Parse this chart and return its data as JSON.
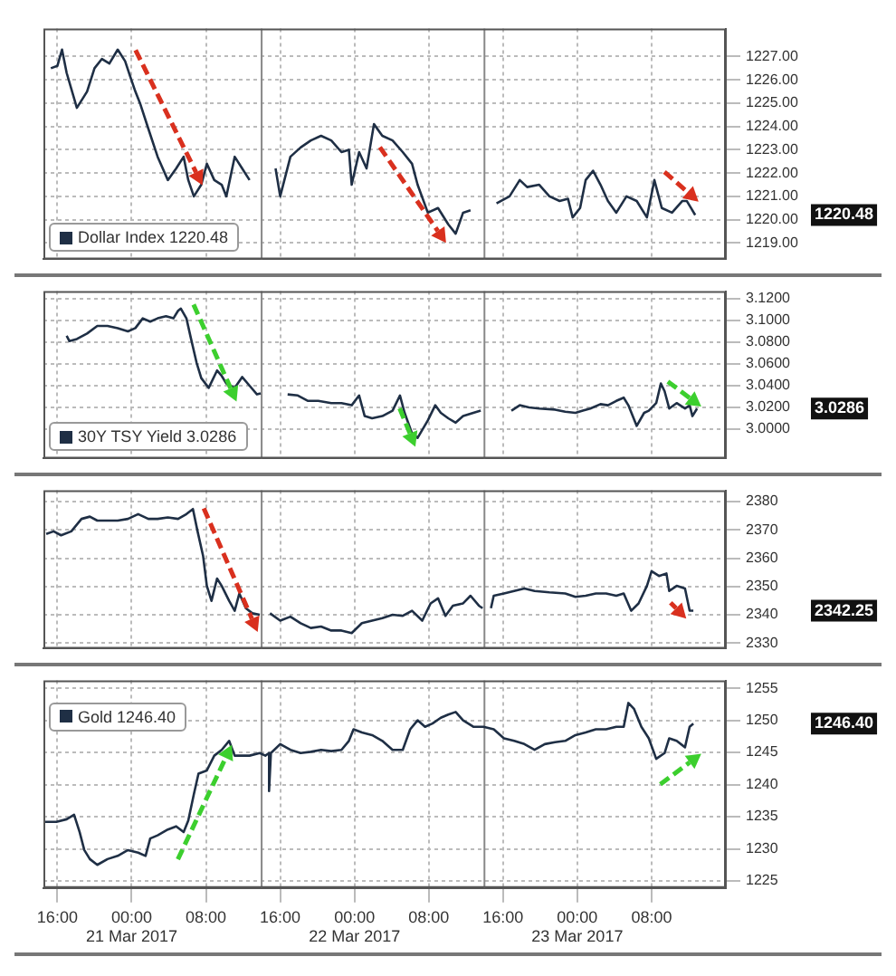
{
  "chart_data": [
    {
      "type": "line",
      "xlim": [
        "2017-03-20T14:30",
        "2017-03-23T16:00"
      ],
      "xticks": [
        {
          "value": "2017-03-20T16:00",
          "label": null
        },
        {
          "value": "2017-03-21T00:00",
          "label": null
        },
        {
          "value": "2017-03-21T08:00",
          "label": null
        },
        {
          "value": "2017-03-21T16:00",
          "label": null
        },
        {
          "value": "2017-03-22T00:00",
          "label": null
        },
        {
          "value": "2017-03-22T08:00",
          "label": null
        },
        {
          "value": "2017-03-22T16:00",
          "label": null
        },
        {
          "value": "2017-03-23T00:00",
          "label": null
        },
        {
          "value": "2017-03-23T08:00",
          "label": null
        }
      ],
      "ylim": [
        1218.3,
        1228.2
      ],
      "yticks": [
        {
          "value": 1219,
          "label": "1219.00"
        },
        {
          "value": 1220,
          "label": "1220.00"
        },
        {
          "value": 1221,
          "label": "1221.00"
        },
        {
          "value": 1222,
          "label": "1222.00"
        },
        {
          "value": 1223,
          "label": "1223.00"
        },
        {
          "value": 1224,
          "label": "1224.00"
        },
        {
          "value": 1225,
          "label": "1225.00"
        },
        {
          "value": 1226,
          "label": "1226.00"
        },
        {
          "value": 1227,
          "label": "1227.00"
        }
      ],
      "tick_labels": "y",
      "grid": true,
      "legend": "bottom left",
      "ref_lines": [
        {
          "axis": "x",
          "value": "2017-03-21T14:00",
          "color": "#888888"
        },
        {
          "axis": "x",
          "value": "2017-03-22T14:00",
          "color": "#888888"
        }
      ],
      "annotations": [
        "1220.48"
      ],
      "series": [
        {
          "name": "Dollar Index 1220.48",
          "color": "#1f2f45",
          "x": [
            "2017-03-20T15:18",
            "2017-03-20T16:00",
            "2017-03-20T16:30",
            "2017-03-20T17:00",
            "2017-03-20T18:06",
            "2017-03-20T19:12",
            "2017-03-20T20:00",
            "2017-03-20T20:48",
            "2017-03-20T21:36",
            "2017-03-20T22:30",
            "2017-03-20T23:18",
            "2017-03-20T23:48",
            "2017-03-21T00:24",
            "2017-03-21T00:54",
            "2017-03-21T01:48",
            "2017-03-21T02:48",
            "2017-03-21T03:54",
            "2017-03-21T04:48",
            "2017-03-21T05:36",
            "2017-03-21T06:06",
            "2017-03-21T06:42",
            "2017-03-21T07:30",
            "2017-03-21T08:06",
            "2017-03-21T08:54",
            "2017-03-21T09:42",
            "2017-03-21T10:12",
            "2017-03-21T11:06",
            "2017-03-21T11:54",
            "2017-03-21T12:42",
            "2017-03-21T14:00",
            "2017-03-21T15:30",
            "2017-03-21T16:00",
            "2017-03-21T17:06",
            "2017-03-21T18:12",
            "2017-03-21T19:18",
            "2017-03-21T20:24",
            "2017-03-21T21:30",
            "2017-03-21T22:36",
            "2017-03-21T23:24",
            "2017-03-21T23:42",
            "2017-03-22T00:30",
            "2017-03-22T01:18",
            "2017-03-22T02:06",
            "2017-03-22T03:00",
            "2017-03-22T04:06",
            "2017-03-22T05:12",
            "2017-03-22T06:12",
            "2017-03-22T06:48",
            "2017-03-22T07:54",
            "2017-03-22T09:00",
            "2017-03-22T10:06",
            "2017-03-22T10:54",
            "2017-03-22T11:42",
            "2017-03-22T12:30",
            "2017-03-22T14:00",
            "2017-03-22T15:18",
            "2017-03-22T16:42",
            "2017-03-22T17:48",
            "2017-03-22T18:36",
            "2017-03-22T19:54",
            "2017-03-22T21:00",
            "2017-03-22T22:06",
            "2017-03-22T23:00",
            "2017-03-22T23:30",
            "2017-03-23T00:18",
            "2017-03-23T00:54",
            "2017-03-23T01:42",
            "2017-03-23T02:30",
            "2017-03-23T03:18",
            "2017-03-23T04:12",
            "2017-03-23T05:18",
            "2017-03-23T06:24",
            "2017-03-23T07:30",
            "2017-03-23T08:18",
            "2017-03-23T09:06",
            "2017-03-23T10:12",
            "2017-03-23T11:18",
            "2017-03-23T11:48",
            "2017-03-23T12:42"
          ],
          "values": [
            1226.5,
            1226.6,
            1227.3,
            1226.3,
            1224.8,
            1225.5,
            1226.5,
            1226.9,
            1226.7,
            1227.3,
            1226.8,
            1226.2,
            1225.5,
            1225.0,
            1223.9,
            1222.7,
            1221.7,
            1222.2,
            1222.7,
            1221.7,
            1221.0,
            1221.5,
            1222.4,
            1221.7,
            1221.5,
            1221.0,
            1222.7,
            1222.2,
            1221.7,
            null,
            1222.2,
            1221.0,
            1222.7,
            1223.1,
            1223.4,
            1223.6,
            1223.4,
            1222.9,
            1223.0,
            1221.5,
            1222.9,
            1222.2,
            1224.1,
            1223.6,
            1223.4,
            1222.9,
            1222.4,
            1221.5,
            1220.3,
            1220.5,
            1219.8,
            1219.4,
            1220.3,
            1220.4,
            null,
            1220.7,
            1221.0,
            1221.7,
            1221.4,
            1221.5,
            1221.0,
            1220.8,
            1220.9,
            1220.1,
            1220.5,
            1221.7,
            1222.1,
            1221.5,
            1220.8,
            1220.3,
            1221.0,
            1220.8,
            1220.1,
            1221.7,
            1220.5,
            1220.3,
            1220.8,
            1220.8,
            1220.2
          ]
        }
      ]
    },
    {
      "type": "line",
      "xlim": [
        "2017-03-20T14:30",
        "2017-03-23T16:00"
      ],
      "xticks": [
        {
          "value": "2017-03-20T16:00",
          "label": null
        },
        {
          "value": "2017-03-21T00:00",
          "label": null
        },
        {
          "value": "2017-03-21T08:00",
          "label": null
        },
        {
          "value": "2017-03-21T16:00",
          "label": null
        },
        {
          "value": "2017-03-22T00:00",
          "label": null
        },
        {
          "value": "2017-03-22T08:00",
          "label": null
        },
        {
          "value": "2017-03-22T16:00",
          "label": null
        },
        {
          "value": "2017-03-23T00:00",
          "label": null
        },
        {
          "value": "2017-03-23T08:00",
          "label": null
        }
      ],
      "ylim": [
        2.973,
        3.127
      ],
      "yticks": [
        {
          "value": 3.0,
          "label": "3.0000"
        },
        {
          "value": 3.02,
          "label": "3.0200"
        },
        {
          "value": 3.04,
          "label": "3.0400"
        },
        {
          "value": 3.06,
          "label": "3.0600"
        },
        {
          "value": 3.08,
          "label": "3.0800"
        },
        {
          "value": 3.1,
          "label": "3.1000"
        },
        {
          "value": 3.12,
          "label": "3.1200"
        }
      ],
      "tick_labels": "y",
      "grid": true,
      "legend": "bottom left",
      "ref_lines": [
        {
          "axis": "x",
          "value": "2017-03-21T14:00",
          "color": "#888888"
        },
        {
          "axis": "x",
          "value": "2017-03-22T14:00",
          "color": "#888888"
        }
      ],
      "annotations": [
        "3.0286"
      ],
      "series": [
        {
          "name": "30Y TSY Yield 3.0286",
          "color": "#1f2f45",
          "x": [
            "2017-03-20T17:00",
            "2017-03-20T17:18",
            "2017-03-20T18:06",
            "2017-03-20T19:12",
            "2017-03-20T20:18",
            "2017-03-20T21:24",
            "2017-03-20T22:30",
            "2017-03-20T23:36",
            "2017-03-21T00:24",
            "2017-03-21T01:12",
            "2017-03-21T02:00",
            "2017-03-21T02:48",
            "2017-03-21T03:42",
            "2017-03-21T04:30",
            "2017-03-21T05:00",
            "2017-03-21T05:18",
            "2017-03-21T05:54",
            "2017-03-21T06:24",
            "2017-03-21T07:00",
            "2017-03-21T07:30",
            "2017-03-21T08:18",
            "2017-03-21T09:12",
            "2017-03-21T09:42",
            "2017-03-21T10:12",
            "2017-03-21T11:06",
            "2017-03-21T11:54",
            "2017-03-21T12:42",
            "2017-03-21T13:30",
            "2017-03-21T13:54",
            "2017-03-21T14:00",
            "2017-03-21T16:48",
            "2017-03-21T17:54",
            "2017-03-21T19:00",
            "2017-03-21T20:06",
            "2017-03-21T21:30",
            "2017-03-21T22:36",
            "2017-03-21T23:42",
            "2017-03-22T00:30",
            "2017-03-22T01:06",
            "2017-03-22T01:54",
            "2017-03-22T03:00",
            "2017-03-22T04:06",
            "2017-03-22T04:54",
            "2017-03-22T05:24",
            "2017-03-22T06:12",
            "2017-03-22T06:48",
            "2017-03-22T07:54",
            "2017-03-22T08:42",
            "2017-03-22T09:18",
            "2017-03-22T10:06",
            "2017-03-22T10:54",
            "2017-03-22T11:42",
            "2017-03-22T12:48",
            "2017-03-22T13:36",
            "2017-03-22T14:00",
            "2017-03-22T16:54",
            "2017-03-22T17:48",
            "2017-03-22T18:48",
            "2017-03-22T19:54",
            "2017-03-22T21:36",
            "2017-03-22T22:42",
            "2017-03-22T23:48",
            "2017-03-23T00:36",
            "2017-03-23T01:24",
            "2017-03-23T02:30",
            "2017-03-23T03:18",
            "2017-03-23T04:12",
            "2017-03-23T05:00",
            "2017-03-23T05:30",
            "2017-03-23T06:24",
            "2017-03-23T07:12",
            "2017-03-23T07:42",
            "2017-03-23T08:30",
            "2017-03-23T09:00",
            "2017-03-23T09:24",
            "2017-03-23T09:54",
            "2017-03-23T10:42",
            "2017-03-23T11:36",
            "2017-03-23T12:06",
            "2017-03-23T12:24",
            "2017-03-23T12:54"
          ],
          "values": [
            3.086,
            3.081,
            3.083,
            3.088,
            3.095,
            3.095,
            3.093,
            3.09,
            3.093,
            3.102,
            3.099,
            3.102,
            3.104,
            3.102,
            3.109,
            3.111,
            3.102,
            3.083,
            3.061,
            3.047,
            3.038,
            3.054,
            3.049,
            3.042,
            3.038,
            3.048,
            3.04,
            3.032,
            3.033,
            null,
            3.032,
            3.031,
            3.026,
            3.026,
            3.024,
            3.024,
            3.022,
            3.031,
            3.012,
            3.01,
            3.012,
            3.017,
            3.031,
            3.015,
            2.996,
            2.992,
            3.008,
            3.022,
            3.015,
            3.01,
            3.006,
            3.012,
            3.015,
            3.017,
            null,
            3.017,
            3.022,
            3.02,
            3.019,
            3.018,
            3.016,
            3.015,
            3.017,
            3.019,
            3.023,
            3.022,
            3.026,
            3.029,
            3.022,
            3.003,
            3.015,
            3.017,
            3.024,
            3.042,
            3.035,
            3.019,
            3.024,
            3.019,
            3.022,
            3.012,
            3.019
          ]
        }
      ]
    },
    {
      "type": "line",
      "xlim": [
        "2017-03-20T14:30",
        "2017-03-23T16:00"
      ],
      "xticks": [
        {
          "value": "2017-03-20T16:00",
          "label": null
        },
        {
          "value": "2017-03-21T00:00",
          "label": null
        },
        {
          "value": "2017-03-21T08:00",
          "label": null
        },
        {
          "value": "2017-03-21T16:00",
          "label": null
        },
        {
          "value": "2017-03-22T00:00",
          "label": null
        },
        {
          "value": "2017-03-22T08:00",
          "label": null
        },
        {
          "value": "2017-03-22T16:00",
          "label": null
        },
        {
          "value": "2017-03-23T00:00",
          "label": null
        },
        {
          "value": "2017-03-23T08:00",
          "label": null
        }
      ],
      "ylim": [
        2328,
        2384
      ],
      "yticks": [
        2330,
        2340,
        2350,
        2360,
        2370,
        2380
      ],
      "tick_labels": "y",
      "grid": true,
      "ref_lines": [
        {
          "axis": "x",
          "value": "2017-03-21T14:00",
          "color": "#888888"
        },
        {
          "axis": "x",
          "value": "2017-03-22T14:00",
          "color": "#888888"
        }
      ],
      "annotations": [
        "2342.25"
      ],
      "series": [
        {
          "color": "#1f2f45",
          "x": [
            "2017-03-20T14:48",
            "2017-03-20T15:36",
            "2017-03-20T16:24",
            "2017-03-20T17:30",
            "2017-03-20T18:36",
            "2017-03-20T19:30",
            "2017-03-20T20:18",
            "2017-03-20T21:24",
            "2017-03-20T22:30",
            "2017-03-20T23:36",
            "2017-03-21T00:42",
            "2017-03-21T01:48",
            "2017-03-21T02:48",
            "2017-03-21T03:54",
            "2017-03-21T05:00",
            "2017-03-21T05:54",
            "2017-03-21T06:36",
            "2017-03-21T07:06",
            "2017-03-21T07:42",
            "2017-03-21T08:06",
            "2017-03-21T08:36",
            "2017-03-21T09:12",
            "2017-03-21T09:42",
            "2017-03-21T10:30",
            "2017-03-21T11:06",
            "2017-03-21T11:36",
            "2017-03-21T12:18",
            "2017-03-21T13:00",
            "2017-03-21T13:48",
            "2017-03-21T14:00",
            "2017-03-21T14:54",
            "2017-03-21T16:00",
            "2017-03-21T17:06",
            "2017-03-21T18:12",
            "2017-03-21T19:18",
            "2017-03-21T20:24",
            "2017-03-21T21:30",
            "2017-03-21T22:36",
            "2017-03-21T23:42",
            "2017-03-22T00:48",
            "2017-03-22T01:54",
            "2017-03-22T03:00",
            "2017-03-22T04:06",
            "2017-03-22T05:12",
            "2017-03-22T06:12",
            "2017-03-22T07:18",
            "2017-03-22T08:12",
            "2017-03-22T09:00",
            "2017-03-22T09:48",
            "2017-03-22T10:36",
            "2017-03-22T11:42",
            "2017-03-22T12:30",
            "2017-03-22T13:24",
            "2017-03-22T13:48",
            "2017-03-22T14:00",
            "2017-03-22T14:42",
            "2017-03-22T15:00",
            "2017-03-22T16:06",
            "2017-03-22T17:12",
            "2017-03-22T18:18",
            "2017-03-22T19:24",
            "2017-03-22T21:00",
            "2017-03-22T22:42",
            "2017-03-22T23:48",
            "2017-03-23T00:54",
            "2017-03-23T02:00",
            "2017-03-23T03:06",
            "2017-03-23T04:12",
            "2017-03-23T05:00",
            "2017-03-23T05:48",
            "2017-03-23T06:36",
            "2017-03-23T07:30",
            "2017-03-23T08:00",
            "2017-03-23T08:48",
            "2017-03-23T09:36",
            "2017-03-23T09:54",
            "2017-03-23T10:42",
            "2017-03-23T11:36",
            "2017-03-23T12:06",
            "2017-03-23T12:30"
          ],
          "values": [
            2368.6,
            2369.5,
            2368.1,
            2369.5,
            2373.9,
            2374.7,
            2373.3,
            2373.3,
            2373.3,
            2373.9,
            2375.6,
            2373.9,
            2373.9,
            2374.4,
            2373.9,
            2375.6,
            2377.4,
            2369.5,
            2360.7,
            2350.2,
            2344.9,
            2352.8,
            2350.2,
            2344.9,
            2341.4,
            2347.5,
            2342.3,
            2340.5,
            2340.0,
            null,
            2340.5,
            2337.9,
            2339.3,
            2337.0,
            2335.3,
            2335.8,
            2334.4,
            2334.4,
            2333.5,
            2337.0,
            2337.9,
            2338.8,
            2340.0,
            2339.6,
            2341.4,
            2337.9,
            2344.0,
            2345.8,
            2339.6,
            2343.2,
            2344.0,
            2346.7,
            2343.2,
            2342.3,
            null,
            2342.3,
            2346.7,
            2347.5,
            2348.4,
            2349.3,
            2348.4,
            2347.9,
            2347.5,
            2346.3,
            2346.7,
            2347.5,
            2347.5,
            2346.7,
            2347.5,
            2341.4,
            2344.0,
            2350.2,
            2355.4,
            2353.7,
            2354.6,
            2348.4,
            2350.2,
            2349.3,
            2341.4,
            2341.4
          ]
        }
      ]
    },
    {
      "type": "line",
      "xlim": [
        "2017-03-20T14:30",
        "2017-03-23T16:00"
      ],
      "xticks": [
        {
          "value": "2017-03-20T16:00",
          "label": "16:00"
        },
        {
          "value": "2017-03-21T00:00",
          "label": "00:00\n21 Mar 2017"
        },
        {
          "value": "2017-03-21T08:00",
          "label": "08:00"
        },
        {
          "value": "2017-03-21T16:00",
          "label": "16:00"
        },
        {
          "value": "2017-03-22T00:00",
          "label": "00:00\n22 Mar 2017"
        },
        {
          "value": "2017-03-22T08:00",
          "label": "08:00"
        },
        {
          "value": "2017-03-22T16:00",
          "label": "16:00"
        },
        {
          "value": "2017-03-23T00:00",
          "label": "00:00\n23 Mar 2017"
        },
        {
          "value": "2017-03-23T08:00",
          "label": "08:00"
        }
      ],
      "ylim": [
        1223.9,
        1256.2
      ],
      "yticks": [
        1225,
        1230,
        1235,
        1240,
        1245,
        1250,
        1255
      ],
      "grid": true,
      "legend": "top left",
      "ref_lines": [
        {
          "axis": "x",
          "value": "2017-03-21T14:00",
          "color": "#888888"
        },
        {
          "axis": "x",
          "value": "2017-03-22T14:00",
          "color": "#888888"
        }
      ],
      "annotations": [
        "1246.40"
      ],
      "series": [
        {
          "name": "Gold 1246.40",
          "color": "#1f2f45",
          "x": [
            "2017-03-20T14:30",
            "2017-03-20T15:54",
            "2017-03-20T17:00",
            "2017-03-20T17:48",
            "2017-03-20T18:24",
            "2017-03-20T18:54",
            "2017-03-20T19:30",
            "2017-03-20T20:18",
            "2017-03-20T21:24",
            "2017-03-20T22:30",
            "2017-03-20T23:36",
            "2017-03-21T00:42",
            "2017-03-21T01:30",
            "2017-03-21T02:00",
            "2017-03-21T02:48",
            "2017-03-21T03:54",
            "2017-03-21T04:48",
            "2017-03-21T05:36",
            "2017-03-21T06:06",
            "2017-03-21T06:42",
            "2017-03-21T07:12",
            "2017-03-21T08:06",
            "2017-03-21T08:54",
            "2017-03-21T09:42",
            "2017-03-21T10:30",
            "2017-03-21T11:06",
            "2017-03-21T11:36",
            "2017-03-21T12:42",
            "2017-03-21T13:48",
            "2017-03-21T14:24",
            "2017-03-21T14:48",
            "2017-03-21T14:48",
            "2017-03-21T15:00",
            "2017-03-21T16:00",
            "2017-03-21T17:06",
            "2017-03-21T18:12",
            "2017-03-21T19:18",
            "2017-03-21T20:24",
            "2017-03-21T21:30",
            "2017-03-21T22:36",
            "2017-03-21T23:24",
            "2017-03-21T23:54",
            "2017-03-22T00:48",
            "2017-03-22T01:54",
            "2017-03-22T03:00",
            "2017-03-22T04:06",
            "2017-03-22T05:12",
            "2017-03-22T06:00",
            "2017-03-22T06:48",
            "2017-03-22T07:36",
            "2017-03-22T08:24",
            "2017-03-22T09:18",
            "2017-03-22T10:06",
            "2017-03-22T10:54",
            "2017-03-22T11:42",
            "2017-03-22T12:48",
            "2017-03-22T13:54",
            "2017-03-22T15:00",
            "2017-03-22T16:06",
            "2017-03-22T17:12",
            "2017-03-22T18:18",
            "2017-03-22T19:24",
            "2017-03-22T20:30",
            "2017-03-22T21:36",
            "2017-03-22T22:42",
            "2017-03-22T23:48",
            "2017-03-23T00:54",
            "2017-03-23T02:00",
            "2017-03-23T03:06",
            "2017-03-23T04:12",
            "2017-03-23T05:00",
            "2017-03-23T05:30",
            "2017-03-23T06:06",
            "2017-03-23T06:54",
            "2017-03-23T07:42",
            "2017-03-23T08:30",
            "2017-03-23T09:24",
            "2017-03-23T09:54",
            "2017-03-23T10:42",
            "2017-03-23T11:36",
            "2017-03-23T12:06",
            "2017-03-23T12:30"
          ],
          "values": [
            1234.2,
            1234.2,
            1234.6,
            1235.3,
            1232.6,
            1229.8,
            1228.4,
            1227.5,
            1228.4,
            1228.9,
            1229.8,
            1229.4,
            1228.9,
            1231.6,
            1232.1,
            1233.0,
            1233.5,
            1232.6,
            1234.4,
            1238.5,
            1241.7,
            1242.2,
            1244.5,
            1245.4,
            1246.8,
            1244.5,
            1244.5,
            1244.5,
            1244.9,
            1244.5,
            1244.9,
            1239.0,
            1244.9,
            1246.3,
            1245.4,
            1244.9,
            1245.1,
            1245.4,
            1245.2,
            1245.4,
            1246.8,
            1248.6,
            1248.1,
            1247.7,
            1246.8,
            1245.4,
            1245.4,
            1248.6,
            1250.0,
            1249.0,
            1249.5,
            1250.4,
            1250.9,
            1251.3,
            1250.0,
            1249.0,
            1249.0,
            1248.6,
            1247.2,
            1246.8,
            1246.3,
            1245.4,
            1246.3,
            1246.6,
            1246.8,
            1247.7,
            1248.1,
            1248.6,
            1248.6,
            1249.0,
            1249.0,
            1252.7,
            1251.8,
            1249.0,
            1247.2,
            1244.0,
            1244.9,
            1247.2,
            1246.8,
            1245.8,
            1249.0,
            1249.5
          ]
        }
      ]
    }
  ]
}
